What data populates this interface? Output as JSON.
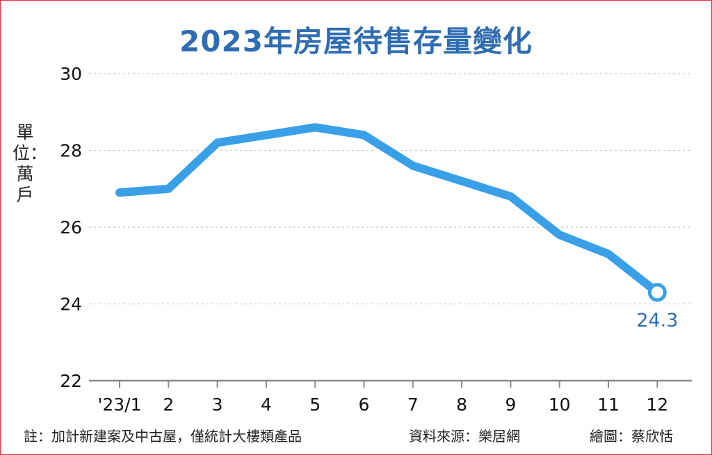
{
  "chart_data": {
    "type": "line",
    "title": "2023年房屋待售存量變化",
    "ylabel": "單位：萬戶",
    "categories": [
      "'23/1",
      "2",
      "3",
      "4",
      "5",
      "6",
      "7",
      "8",
      "9",
      "10",
      "11",
      "12"
    ],
    "series": [
      {
        "values": [
          26.9,
          27.0,
          28.2,
          28.4,
          28.6,
          28.4,
          27.6,
          27.2,
          26.8,
          25.8,
          25.3,
          24.3
        ]
      }
    ],
    "ylim": [
      22,
      30
    ],
    "yticks": [
      22,
      24,
      26,
      28,
      30
    ],
    "grid": true,
    "annotation": {
      "label": "24.3"
    },
    "colors": {
      "line": "#39a0e8",
      "title": "#2f6db3",
      "annotation": "#2f6db3",
      "grid": "#c8c8c8"
    }
  },
  "footer": {
    "note": "註：加計新建案及中古屋，僅統計大樓類產品",
    "source": "資料來源：樂居網",
    "credit": "繪圖：蔡欣恬"
  }
}
